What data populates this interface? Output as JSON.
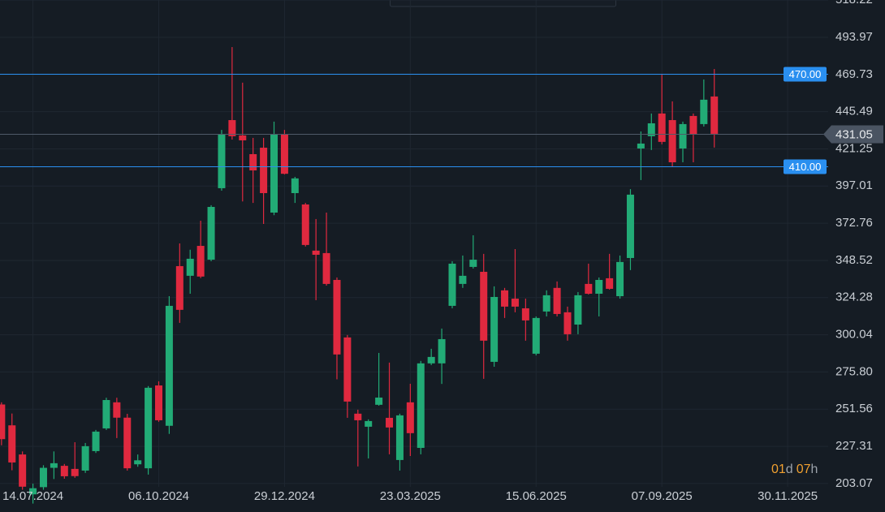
{
  "chart_data": {
    "type": "candlestick",
    "x": [
      "23.06.2024",
      "30.06.2024",
      "07.07.2024",
      "14.07.2024",
      "21.07.2024",
      "28.07.2024",
      "04.08.2024",
      "11.08.2024",
      "18.08.2024",
      "25.08.2024",
      "01.09.2024",
      "08.09.2024",
      "15.09.2024",
      "22.09.2024",
      "29.09.2024",
      "06.10.2024",
      "13.10.2024",
      "20.10.2024",
      "27.10.2024",
      "03.11.2024",
      "10.11.2024",
      "17.11.2024",
      "24.11.2024",
      "01.12.2024",
      "08.12.2024",
      "15.12.2024",
      "22.12.2024",
      "29.12.2024",
      "05.01.2025",
      "12.01.2025",
      "19.01.2025",
      "26.01.2025",
      "02.02.2025",
      "09.02.2025",
      "16.02.2025",
      "23.02.2025",
      "02.03.2025",
      "09.03.2025",
      "16.03.2025",
      "23.03.2025",
      "30.03.2025",
      "06.04.2025",
      "13.04.2025",
      "20.04.2025",
      "27.04.2025",
      "04.05.2025",
      "11.05.2025",
      "18.05.2025",
      "25.05.2025",
      "01.06.2025",
      "08.06.2025",
      "15.06.2025",
      "22.06.2025",
      "29.06.2025",
      "06.07.2025",
      "13.07.2025",
      "20.07.2025",
      "27.07.2025",
      "03.08.2025",
      "10.08.2025",
      "17.08.2025",
      "24.08.2025",
      "31.08.2025",
      "07.09.2025",
      "14.09.2025",
      "21.09.2025",
      "28.09.2025",
      "05.10.2025",
      "12.10.2025"
    ],
    "open": [
      254.6,
      241,
      222,
      196,
      200.7,
      213.3,
      214.6,
      212.6,
      211.5,
      224.2,
      239,
      256,
      246,
      215.6,
      213,
      267,
      240.7,
      344.8,
      338.5,
      358,
      349,
      395.6,
      440,
      430,
      417.8,
      422,
      379.7,
      431,
      392.4,
      385,
      354.9,
      353.3,
      335.8,
      298.3,
      248.6,
      240.1,
      254.4,
      245.9,
      218.4,
      256,
      226.3,
      281.4,
      281.4,
      318.9,
      333.2,
      344.3,
      341.1,
      282.4,
      329,
      323.6,
      317.3,
      287.7,
      315.2,
      330.6,
      314.7,
      306.7,
      333.2,
      326.8,
      336.9,
      325.2,
      350.1,
      421.5,
      429.5,
      444.3,
      440,
      421.5,
      442.7,
      437.4,
      455.4
    ],
    "high": [
      256,
      248.7,
      224,
      203,
      215,
      224,
      215.8,
      230,
      229.5,
      238,
      259,
      259,
      248.5,
      222,
      266.6,
      269.7,
      325.2,
      359.6,
      355.5,
      374.4,
      384.5,
      433.6,
      487.6,
      464.4,
      428.4,
      428.4,
      439,
      433.6,
      403,
      386,
      375.5,
      379.7,
      337.4,
      299.9,
      251.2,
      244.9,
      288.2,
      281.9,
      248.6,
      268.1,
      283,
      290.9,
      304.1,
      348,
      351.7,
      364.9,
      352.8,
      331.6,
      330.6,
      355.9,
      323.6,
      312,
      329,
      334.8,
      318.4,
      327.9,
      346.4,
      337.4,
      352.8,
      351.7,
      395,
      432.6,
      444.3,
      469.6,
      452.2,
      439,
      444.3,
      466.5,
      473.3
    ],
    "low": [
      228,
      211.7,
      199,
      190,
      199,
      206,
      206.2,
      206.8,
      210,
      223,
      238,
      232.7,
      211.5,
      214,
      208.9,
      243.3,
      235.4,
      307.8,
      326.8,
      337,
      348,
      394,
      427.3,
      387,
      386,
      372.3,
      378,
      404.6,
      386,
      357.6,
      322.6,
      332.1,
      271,
      245.9,
      214.2,
      219.4,
      253.8,
      222.1,
      211.5,
      221,
      222.1,
      280.3,
      268,
      317.3,
      330.6,
      343.2,
      271.3,
      279.2,
      311,
      314.7,
      296.2,
      286.6,
      312,
      312,
      296.2,
      300.4,
      326.3,
      312,
      329.5,
      323.6,
      342.2,
      400.9,
      420.5,
      424.2,
      409.3,
      412.5,
      412.5,
      435.8,
      422.1
    ],
    "close": [
      232,
      216.8,
      201,
      200,
      213.3,
      216.3,
      207.8,
      207.9,
      227.4,
      236.9,
      257.5,
      246,
      213,
      218.2,
      265.5,
      244.3,
      318.9,
      316.3,
      349.6,
      338,
      383.4,
      431,
      429.5,
      426.8,
      407.2,
      392.4,
      431,
      405,
      402,
      358.6,
      352.2,
      333.2,
      287.2,
      256.5,
      244.3,
      243.8,
      259.1,
      239.6,
      247.5,
      235.9,
      281.4,
      285.6,
      297.2,
      346.4,
      338.5,
      349,
      296.2,
      324.7,
      318.4,
      318.4,
      309.4,
      311,
      325.8,
      313.6,
      300.4,
      325.8,
      326.8,
      335.8,
      330,
      347.5,
      391.4,
      424.7,
      437.9,
      425.8,
      412.5,
      437.4,
      431,
      453.3,
      431.05
    ],
    "up_color": "#22ab76",
    "down_color": "#e0293f",
    "xlim": [
      "22.06.2024",
      "03.02.2026"
    ],
    "xticks": [
      "14.07.2024",
      "06.10.2024",
      "29.12.2024",
      "23.03.2025",
      "15.06.2025",
      "07.09.2025",
      "30.11.2025"
    ],
    "ylim": [
      184.5,
      518.3
    ],
    "yticks": [
      203.07,
      227.31,
      251.56,
      {
        "value": 275.8,
        "label": "275.80"
      },
      300.04,
      324.28,
      348.52,
      372.76,
      397.01,
      421.25,
      445.49,
      469.73,
      493.97,
      518.22
    ],
    "grid": true,
    "price_lines": [
      {
        "value": 470,
        "label": "470.00",
        "color": "#2a8ff0"
      },
      {
        "value": 410,
        "label": "410.00",
        "color": "#2a8ff0"
      }
    ],
    "countdown": [
      "01",
      "d",
      "07",
      "h"
    ]
  }
}
